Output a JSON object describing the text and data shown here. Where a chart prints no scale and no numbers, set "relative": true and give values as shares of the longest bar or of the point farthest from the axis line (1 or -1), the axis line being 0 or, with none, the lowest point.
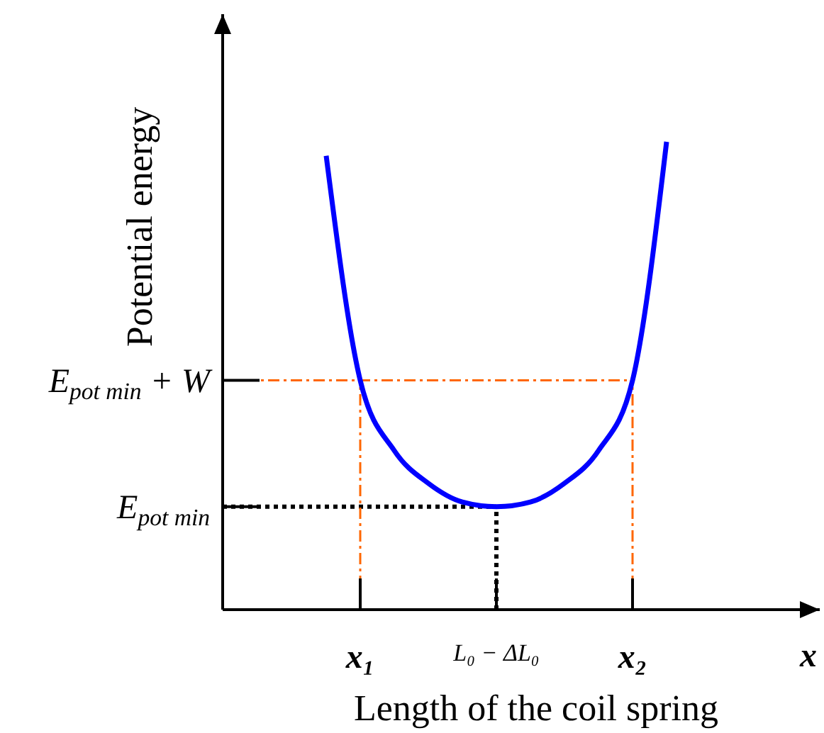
{
  "chart_data": {
    "type": "line",
    "relative": true,
    "ylabel": "Potential energy",
    "xlabel": "Length of the coil spring",
    "annotations": [
      "x"
    ],
    "categories": [
      null,
      "x₁",
      null,
      null,
      null,
      "L₀ − ΔL₀",
      null,
      null,
      null,
      "x₂",
      null
    ],
    "series": [
      {
        "color": "#0000ff",
        "values": [
          0.97,
          0.49,
          0.34,
          0.27,
          0.23,
          0.22,
          0.23,
          0.27,
          0.34,
          0.49,
          1.0
        ]
      }
    ],
    "ref_lines": [
      {
        "axis": "y",
        "value": 0.49,
        "label": "E$_{pot min}$ + W",
        "color": "#ff6600",
        "line_style": "dashed"
      },
      {
        "axis": "y",
        "value": 0.22,
        "label": "E$_{pot min}$",
        "color": "#000000",
        "line_style": "dotted"
      },
      {
        "axis": "x",
        "value": "x₁",
        "color": "#ff6600",
        "line_style": "dashed"
      },
      {
        "axis": "x",
        "value": "x₂",
        "color": "#ff6600",
        "line_style": "dashed"
      },
      {
        "axis": "x",
        "value": "L₀ − ΔL₀",
        "color": "#000000",
        "line_style": "dotted"
      }
    ],
    "line_style": "solid"
  }
}
